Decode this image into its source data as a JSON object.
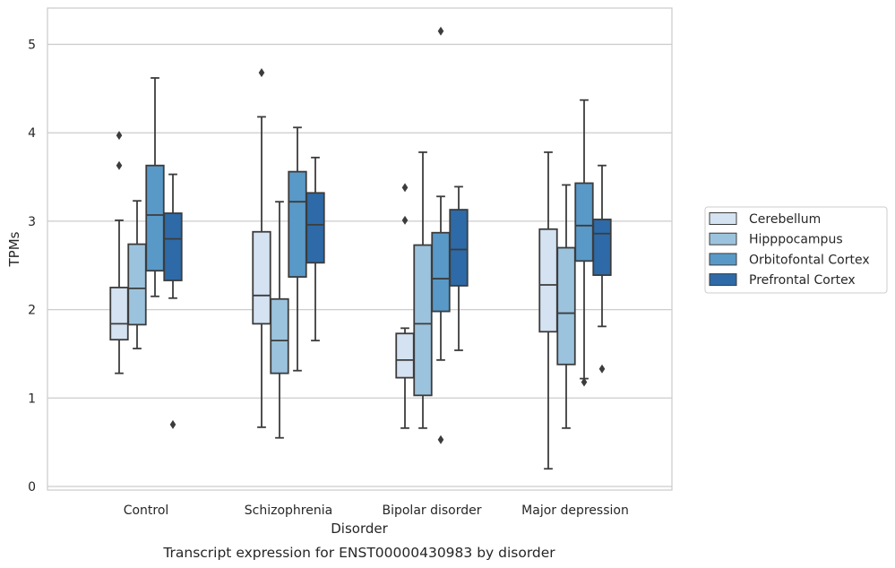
{
  "chart_data": {
    "type": "boxplot",
    "title": "",
    "caption": "Transcript expression for ENST00000430983 by disorder",
    "xlabel": "Disorder",
    "ylabel": "TPMs",
    "ylim": [
      -0.05,
      5.4
    ],
    "yticks": [
      "0",
      "1",
      "2",
      "3",
      "4",
      "5"
    ],
    "grid": "horizontal",
    "legend_position": "right",
    "categories": [
      "Control",
      "Schizophrenia",
      "Bipolar disorder",
      "Major depression"
    ],
    "series": [
      {
        "name": "Cerebellum",
        "color": "#d4e2f1",
        "boxes": [
          {
            "whislo": 1.28,
            "q1": 1.66,
            "med": 1.84,
            "q3": 2.25,
            "whishi": 3.01,
            "fliers": [
              3.63,
              3.97
            ]
          },
          {
            "whislo": 0.67,
            "q1": 1.84,
            "med": 2.16,
            "q3": 2.88,
            "whishi": 4.18,
            "fliers": [
              4.68
            ]
          },
          {
            "whislo": 0.66,
            "q1": 1.23,
            "med": 1.43,
            "q3": 1.73,
            "whishi": 1.79,
            "fliers": [
              3.01,
              3.38
            ]
          },
          {
            "whislo": 0.2,
            "q1": 1.75,
            "med": 2.28,
            "q3": 2.91,
            "whishi": 3.78,
            "fliers": []
          }
        ]
      },
      {
        "name": "Hipppocampus",
        "color": "#9cc3dd",
        "boxes": [
          {
            "whislo": 1.56,
            "q1": 1.83,
            "med": 2.24,
            "q3": 2.74,
            "whishi": 3.23,
            "fliers": []
          },
          {
            "whislo": 0.55,
            "q1": 1.28,
            "med": 1.65,
            "q3": 2.12,
            "whishi": 3.22,
            "fliers": []
          },
          {
            "whislo": 0.66,
            "q1": 1.03,
            "med": 1.84,
            "q3": 2.73,
            "whishi": 3.78,
            "fliers": []
          },
          {
            "whislo": 0.66,
            "q1": 1.38,
            "med": 1.96,
            "q3": 2.7,
            "whishi": 3.41,
            "fliers": []
          }
        ]
      },
      {
        "name": "Orbitofontal Cortex",
        "color": "#5899c8",
        "boxes": [
          {
            "whislo": 2.15,
            "q1": 2.44,
            "med": 3.07,
            "q3": 3.63,
            "whishi": 4.62,
            "fliers": []
          },
          {
            "whislo": 1.31,
            "q1": 2.37,
            "med": 3.22,
            "q3": 3.56,
            "whishi": 4.06,
            "fliers": []
          },
          {
            "whislo": 1.43,
            "q1": 1.98,
            "med": 2.35,
            "q3": 2.87,
            "whishi": 3.28,
            "fliers": [
              0.53,
              5.15
            ]
          },
          {
            "whislo": 1.22,
            "q1": 2.55,
            "med": 2.95,
            "q3": 3.43,
            "whishi": 4.37,
            "fliers": [
              1.18
            ]
          }
        ]
      },
      {
        "name": "Prefrontal Cortex",
        "color": "#2d6aa7",
        "boxes": [
          {
            "whislo": 2.13,
            "q1": 2.33,
            "med": 2.8,
            "q3": 3.09,
            "whishi": 3.53,
            "fliers": [
              0.7
            ]
          },
          {
            "whislo": 1.65,
            "q1": 2.53,
            "med": 2.96,
            "q3": 3.32,
            "whishi": 3.72,
            "fliers": []
          },
          {
            "whislo": 1.54,
            "q1": 2.27,
            "med": 2.68,
            "q3": 3.13,
            "whishi": 3.39,
            "fliers": []
          },
          {
            "whislo": 1.81,
            "q1": 2.39,
            "med": 2.86,
            "q3": 3.02,
            "whishi": 3.63,
            "fliers": [
              1.33
            ]
          }
        ]
      }
    ]
  }
}
